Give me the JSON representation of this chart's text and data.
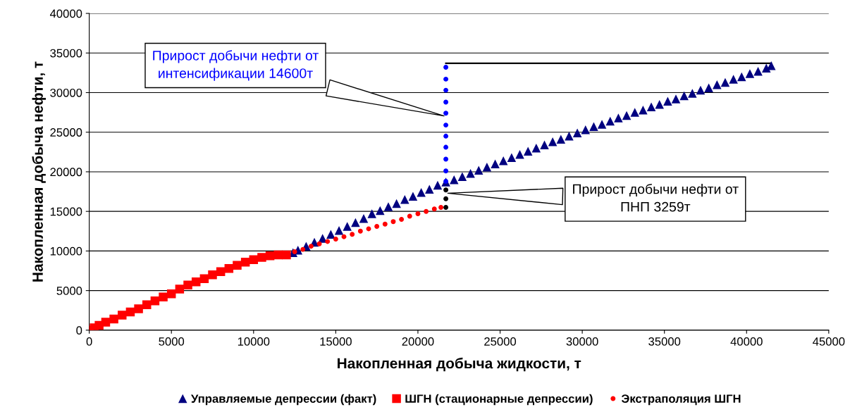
{
  "chart_data": {
    "type": "scatter",
    "xlabel": "Накопленная добыча жидкости, т",
    "ylabel": "Накопленная добыча нефти, т",
    "xlim": [
      0,
      45000
    ],
    "ylim": [
      0,
      40000
    ],
    "xticks": [
      0,
      5000,
      10000,
      15000,
      20000,
      25000,
      30000,
      35000,
      40000,
      45000
    ],
    "yticks": [
      0,
      5000,
      10000,
      15000,
      20000,
      25000,
      30000,
      35000,
      40000
    ],
    "grid": "y",
    "legend": "bottom",
    "series": [
      {
        "name": "Управляемые депрессии (факт)",
        "color": "#000080",
        "marker": "triangle",
        "x": [
          12400,
          12700,
          13200,
          13700,
          14200,
          14700,
          15200,
          15700,
          16200,
          16700,
          17200,
          17700,
          18200,
          18700,
          19200,
          19700,
          20200,
          20700,
          21200,
          21700,
          22200,
          22700,
          23200,
          23700,
          24200,
          24700,
          25200,
          25700,
          26200,
          26700,
          27200,
          27700,
          28200,
          28700,
          29200,
          29700,
          30200,
          30700,
          31200,
          31700,
          32200,
          32700,
          33200,
          33700,
          34200,
          34700,
          35200,
          35700,
          36200,
          36700,
          37200,
          37700,
          38200,
          38700,
          39200,
          39700,
          40200,
          40700,
          41200,
          41500
        ],
        "values": [
          9800,
          10100,
          10600,
          11100,
          11600,
          12100,
          12600,
          13100,
          13600,
          14100,
          14700,
          15100,
          15600,
          16000,
          16500,
          16900,
          17400,
          17800,
          18300,
          18700,
          19000,
          19400,
          19800,
          20200,
          20600,
          21000,
          21400,
          21800,
          22200,
          22600,
          23000,
          23400,
          23800,
          24100,
          24500,
          24900,
          25300,
          25700,
          26000,
          26400,
          26800,
          27100,
          27500,
          27800,
          28200,
          28500,
          28900,
          29200,
          29600,
          29900,
          30300,
          30600,
          31000,
          31300,
          31700,
          32000,
          32400,
          32700,
          33100,
          33400
        ]
      },
      {
        "name": "ШГН (стационарные депрессии)",
        "color": "#ff0000",
        "marker": "square",
        "x": [
          0,
          300,
          600,
          1000,
          1500,
          2000,
          2500,
          3000,
          3500,
          4000,
          4500,
          5000,
          5500,
          6000,
          6500,
          7000,
          7500,
          8000,
          8500,
          9000,
          9500,
          10000,
          10500,
          11000,
          11500,
          12000
        ],
        "values": [
          0,
          300,
          600,
          1000,
          1400,
          1900,
          2300,
          2700,
          3200,
          3700,
          4200,
          4600,
          5200,
          5700,
          6100,
          6500,
          7000,
          7400,
          7800,
          8200,
          8600,
          8900,
          9200,
          9400,
          9500,
          9500
        ]
      },
      {
        "name": "Экстраполяция ШГН",
        "color": "#ff0000",
        "marker": "circle",
        "x": [
          12500,
          13000,
          13500,
          14000,
          14500,
          15000,
          15500,
          16000,
          16500,
          17000,
          17500,
          18000,
          18500,
          19000,
          19500,
          20000,
          20500,
          21000,
          21400
        ],
        "values": [
          9900,
          10200,
          10600,
          10900,
          11200,
          11500,
          11800,
          12100,
          12500,
          12800,
          13100,
          13400,
          13700,
          14000,
          14400,
          14700,
          15000,
          15300,
          15500
        ]
      },
      {
        "color": "#0000ff",
        "marker": "circle",
        "x": [
          21700,
          21700,
          21700,
          21700,
          21700,
          21700,
          21700,
          21700,
          21700,
          21700,
          21700
        ],
        "values": [
          33200,
          31700,
          30300,
          28800,
          27400,
          25900,
          24500,
          23100,
          21600,
          20100,
          18800
        ]
      },
      {
        "color": "#000000",
        "marker": "circle",
        "x": [
          21700,
          21700,
          21700
        ],
        "values": [
          17700,
          16600,
          15500
        ]
      },
      {
        "type": "line",
        "color": "#000000",
        "marker": "none",
        "x": [
          21700,
          41500
        ],
        "values": [
          33700,
          33700
        ]
      }
    ],
    "annotations": [
      {
        "text": "Прирост добычи нефти от\nинтенсификации 14600т",
        "x": 21700,
        "y": 27000
      },
      {
        "text": "Прирост добычи нефти от\nПНП 3259т",
        "x": 21700,
        "y": 17300
      }
    ]
  }
}
